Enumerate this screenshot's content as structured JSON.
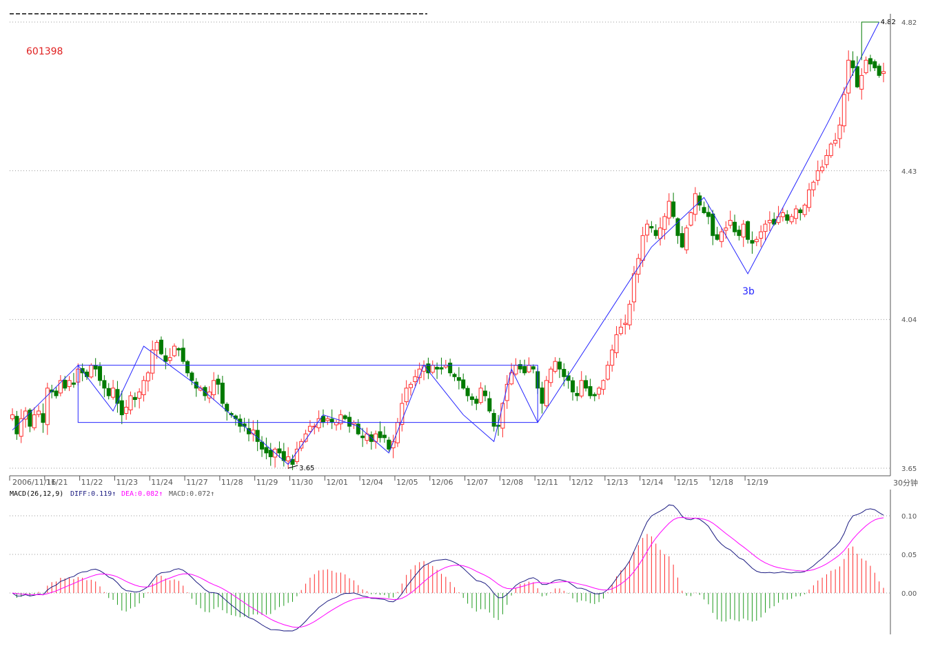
{
  "chart_data": {
    "type": "candlestick",
    "symbol": "601398",
    "period_label": "30分钟",
    "price_axis": {
      "ticks": [
        "4.82",
        "4.43",
        "4.04",
        "3.65"
      ],
      "min": 3.65,
      "max": 4.82
    },
    "date_labels": [
      "2006/11/16",
      "11/21",
      "11/22",
      "11/23",
      "11/24",
      "11/27",
      "11/28",
      "11/29",
      "11/30",
      "12/01",
      "12/04",
      "12/05",
      "12/06",
      "12/07",
      "12/08",
      "12/11",
      "12/12",
      "12/13",
      "12/14",
      "12/15",
      "12/18",
      "12/19"
    ],
    "candles_per_day": 8,
    "closes": [
      3.79,
      3.74,
      3.78,
      3.8,
      3.76,
      3.79,
      3.8,
      3.77,
      3.86,
      3.85,
      3.84,
      3.88,
      3.86,
      3.88,
      3.87,
      3.91,
      3.9,
      3.89,
      3.92,
      3.91,
      3.88,
      3.86,
      3.84,
      3.86,
      3.82,
      3.79,
      3.81,
      3.84,
      3.83,
      3.85,
      3.88,
      3.9,
      3.96,
      3.98,
      3.95,
      3.93,
      3.94,
      3.97,
      3.96,
      3.93,
      3.9,
      3.88,
      3.86,
      3.86,
      3.84,
      3.85,
      3.88,
      3.87,
      3.82,
      3.8,
      3.79,
      3.78,
      3.76,
      3.76,
      3.74,
      3.75,
      3.72,
      3.7,
      3.69,
      3.68,
      3.7,
      3.69,
      3.67,
      3.68,
      3.66,
      3.7,
      3.72,
      3.74,
      3.76,
      3.76,
      3.78,
      3.77,
      3.78,
      3.77,
      3.77,
      3.79,
      3.78,
      3.76,
      3.77,
      3.74,
      3.73,
      3.74,
      3.72,
      3.74,
      3.73,
      3.73,
      3.7,
      3.72,
      3.77,
      3.82,
      3.86,
      3.87,
      3.89,
      3.91,
      3.92,
      3.9,
      3.92,
      3.91,
      3.91,
      3.92,
      3.9,
      3.89,
      3.88,
      3.86,
      3.84,
      3.83,
      3.82,
      3.86,
      3.84,
      3.8,
      3.76,
      3.76,
      3.82,
      3.87,
      3.9,
      3.92,
      3.91,
      3.9,
      3.92,
      3.91,
      3.86,
      3.82,
      3.88,
      3.91,
      3.93,
      3.91,
      3.89,
      3.88,
      3.85,
      3.84,
      3.88,
      3.86,
      3.84,
      3.84,
      3.86,
      3.88,
      3.92,
      3.96,
      4.0,
      4.02,
      4.03,
      4.08,
      4.16,
      4.2,
      4.26,
      4.29,
      4.28,
      4.26,
      4.28,
      4.31,
      4.35,
      4.31,
      4.26,
      4.23,
      4.28,
      4.32,
      4.37,
      4.34,
      4.32,
      4.31,
      4.26,
      4.25,
      4.27,
      4.28,
      4.3,
      4.27,
      4.26,
      4.29,
      4.25,
      4.24,
      4.25,
      4.27,
      4.29,
      4.3,
      4.29,
      4.31,
      4.32,
      4.3,
      4.31,
      4.33,
      4.32,
      4.34,
      4.38,
      4.4,
      4.43,
      4.44,
      4.47,
      4.5,
      4.51,
      4.55,
      4.63,
      4.72,
      4.7,
      4.65,
      4.68,
      4.72,
      4.71,
      4.7,
      4.68,
      4.69
    ],
    "macd": {
      "params": "MACD(26,12,9)",
      "diff": "0.119",
      "dea": "0.082",
      "macd": "0.072",
      "ticks": [
        "0.10",
        "0.05",
        "0.00"
      ]
    },
    "annotations": [
      "3.65",
      "4.82",
      "3b"
    ],
    "colors": {
      "up": "#ff2a2a",
      "down": "#007a00",
      "trend": "#2424ff",
      "diff": "#1a1a80",
      "dea": "#ff00ff"
    }
  }
}
